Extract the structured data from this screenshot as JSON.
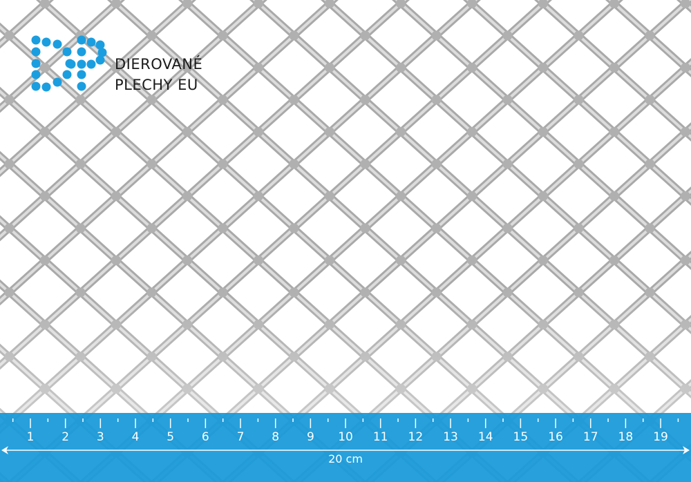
{
  "brand": {
    "name_line1": "DIEROVANÉ",
    "name_line2": "PLECHY EU",
    "logo_letters": "DP",
    "logo_color": "#1a9ee0"
  },
  "ruler": {
    "color": "#0f96d8",
    "labels": [
      "1",
      "2",
      "3",
      "4",
      "5",
      "6",
      "7",
      "8",
      "9",
      "10",
      "11",
      "12",
      "13",
      "14",
      "15",
      "16",
      "17",
      "18",
      "19"
    ],
    "total_label": "20 cm"
  },
  "mesh": {
    "color": "#b9b9b9",
    "background": "#ffffff"
  }
}
